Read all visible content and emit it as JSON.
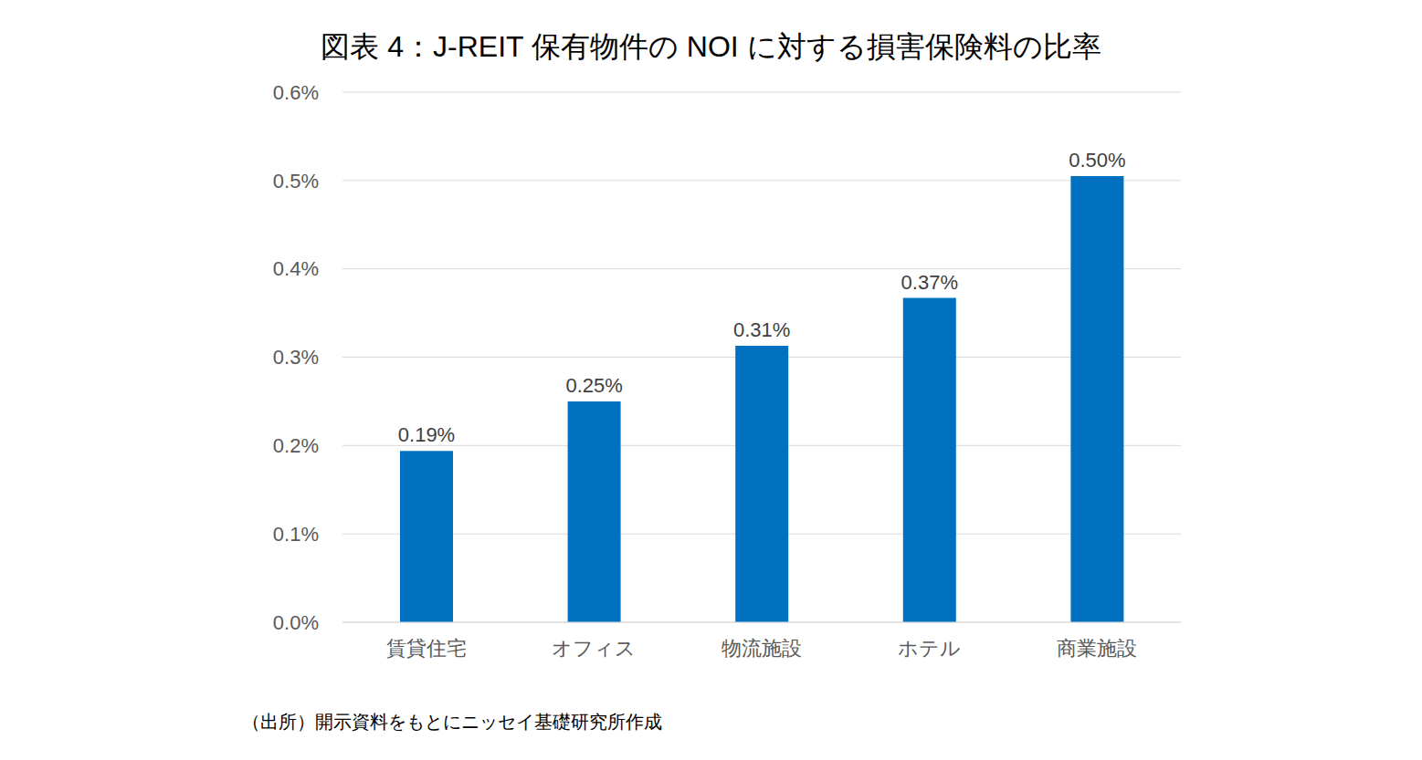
{
  "chart_data": {
    "type": "bar",
    "title": "図表 4：J-REIT 保有物件の NOI に対する損害保険料の比率",
    "categories": [
      "賃貸住宅",
      "オフィス",
      "物流施設",
      "ホテル",
      "商業施設"
    ],
    "values": [
      0.194,
      0.25,
      0.313,
      0.367,
      0.505
    ],
    "value_labels": [
      "0.19%",
      "0.25%",
      "0.31%",
      "0.37%",
      "0.50%"
    ],
    "data_labels": true,
    "color": "#0070c0",
    "ylim": [
      0,
      0.6
    ],
    "yticks": [
      {
        "value": 0,
        "label": "0.0%"
      },
      {
        "value": 0.1,
        "label": "0.1%"
      },
      {
        "value": 0.2,
        "label": "0.2%"
      },
      {
        "value": 0.3,
        "label": "0.3%"
      },
      {
        "value": 0.4,
        "label": "0.4%"
      },
      {
        "value": 0.5,
        "label": "0.5%"
      },
      {
        "value": 0.6,
        "label": "0.6%"
      }
    ],
    "grid": true,
    "note": "（出所）開示資料をもとにニッセイ基礎研究所作成"
  }
}
